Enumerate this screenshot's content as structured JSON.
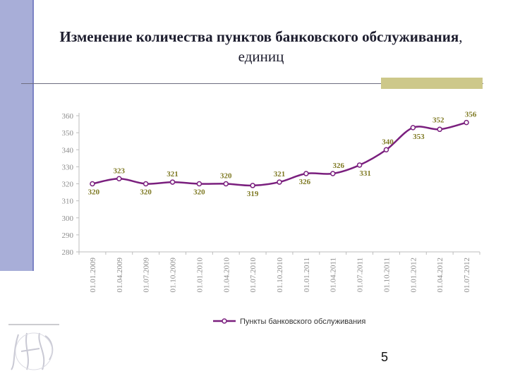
{
  "slide": {
    "title_bold": "Изменение количества пунктов банковского обслуживания",
    "title_suffix": ", единиц",
    "page_number": "5"
  },
  "colors": {
    "series": "#7a1f7e",
    "label": "#7f7a24",
    "axis_text": "#8c8c8c",
    "side_bar": "#a8aed8",
    "accent_block": "#cdc88a"
  },
  "chart_data": {
    "type": "line",
    "title": "",
    "xlabel": "",
    "ylabel": "",
    "ylim": [
      280,
      360
    ],
    "yticks": [
      280,
      290,
      300,
      310,
      320,
      330,
      340,
      350,
      360
    ],
    "grid": false,
    "legend_position": "bottom",
    "categories": [
      "01.01.2009",
      "01.04.2009",
      "01.07.2009",
      "01.10.2009",
      "01.01.2010",
      "01.04.2010",
      "01.07.2010",
      "01.10.2010",
      "01.01.2011",
      "01.04.2011",
      "01.07.2011",
      "01.10.2011",
      "01.01.2012",
      "01.04.2012",
      "01.07.2012"
    ],
    "series": [
      {
        "name": "Пункты банковского обслуживания",
        "values": [
          320,
          323,
          320,
          321,
          320,
          320,
          319,
          321,
          326,
          326,
          331,
          340,
          353,
          352,
          356
        ],
        "labels": [
          "320",
          "323",
          "320",
          "321",
          "320",
          "320",
          "319",
          "321",
          "326",
          "326",
          "331",
          "340",
          "353",
          "352",
          "356"
        ]
      }
    ]
  }
}
